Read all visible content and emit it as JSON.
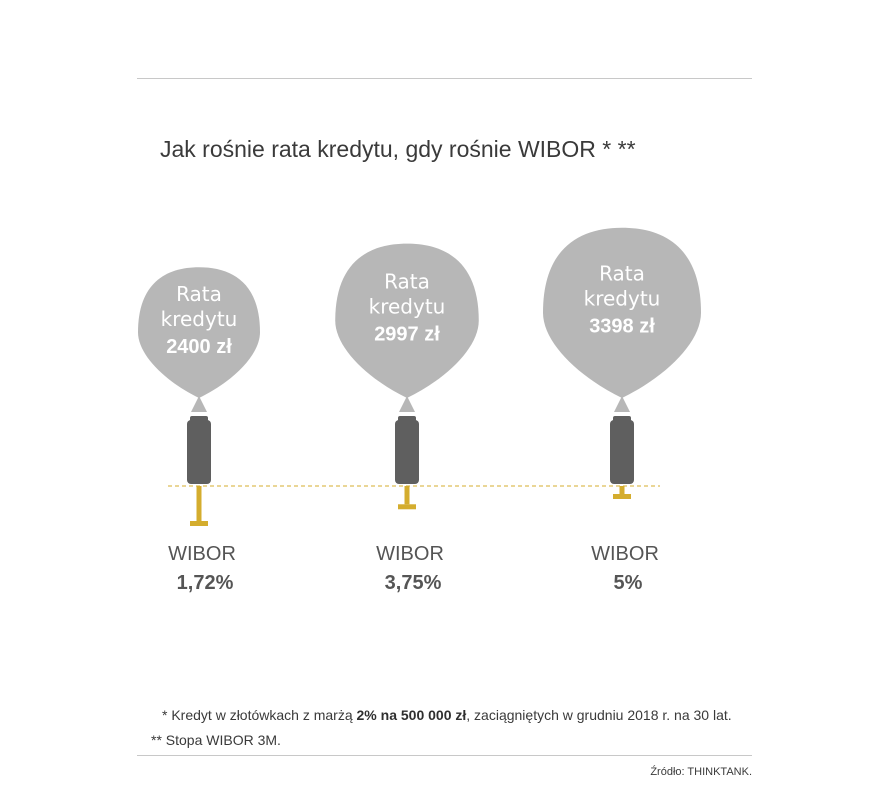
{
  "title": "Jak rośnie rata kredytu, gdy rośnie WIBOR * **",
  "colors": {
    "balloon": "#b7b7b7",
    "pump": "#5f5f5f",
    "handle": "#d4ad2e",
    "dashed_line": "#d4ad2e",
    "text_light": "#ffffff",
    "text_dark": "#555555"
  },
  "chart_data": {
    "type": "pictogram",
    "balloon_label": [
      "Rata",
      "kredytu"
    ],
    "categories": [
      "WIBOR",
      "WIBOR",
      "WIBOR"
    ],
    "items": [
      {
        "label": "WIBOR",
        "wibor": 1.72,
        "wibor_text": "1,72%",
        "rata": 2400,
        "rata_text": "2400 zł"
      },
      {
        "label": "WIBOR",
        "wibor": 3.75,
        "wibor_text": "3,75%",
        "rata": 2997,
        "rata_text": "2997 zł"
      },
      {
        "label": "WIBOR",
        "wibor": 5,
        "wibor_text": "5%",
        "rata": 3398,
        "rata_text": "3398 zł"
      }
    ]
  },
  "footnotes": {
    "note1_pre": "* Kredyt w złotówkach z marżą ",
    "note1_bold": "2% na 500 000 zł",
    "note1_post": ", zaciągniętych w grudniu 2018 r. na 30 lat.",
    "note2": "** Stopa WIBOR 3M."
  },
  "source": "Źródło: THINKTANK."
}
